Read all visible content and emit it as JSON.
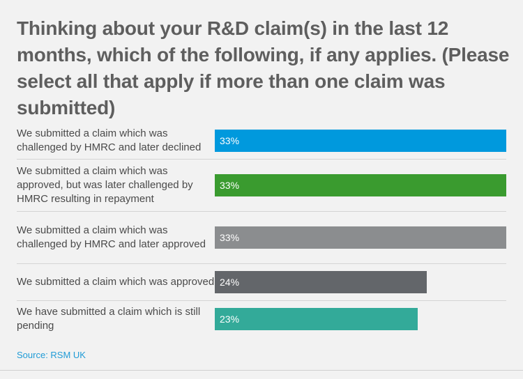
{
  "title": "Thinking about your R&D claim(s) in the last 12 months, which of the following, if any applies. (Please select all that apply if more than one claim was submitted)",
  "source": "Source: RSM UK",
  "chart_data": {
    "type": "bar",
    "orientation": "horizontal",
    "title": "Thinking about your R&D claim(s) in the last 12 months, which of the following, if any applies. (Please select all that apply if more than one claim was submitted)",
    "categories": [
      "We submitted a claim which was challenged by HMRC and later declined",
      "We submitted a claim which was approved, but was later challenged by HMRC resulting in repayment",
      "We submitted a claim which was challenged by HMRC and later approved",
      "We submitted a claim which was approved",
      "We have submitted a claim which is still pending"
    ],
    "values": [
      33,
      33,
      33,
      24,
      23
    ],
    "value_labels": [
      "33%",
      "33%",
      "33%",
      "24%",
      "23%"
    ],
    "colors": [
      "#0099dd",
      "#3a9b2f",
      "#8b8d8f",
      "#63666a",
      "#33aa99"
    ],
    "xlim": [
      0,
      33
    ],
    "grid": false
  }
}
